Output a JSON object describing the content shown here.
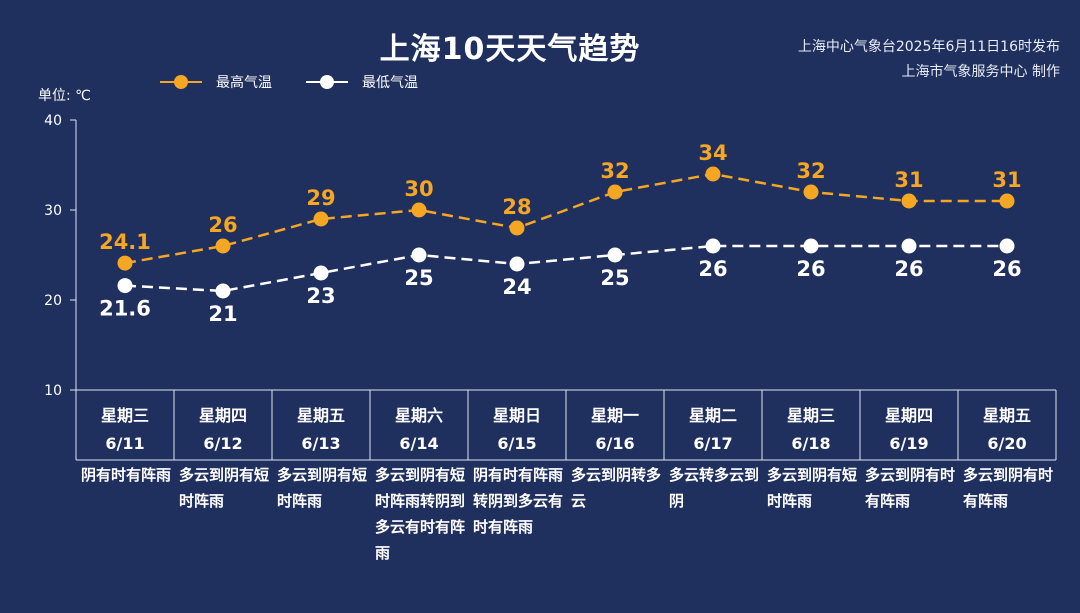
{
  "title": "上海10天天气趋势",
  "credit_line1": "上海中心气象台2025年6月11日16时发布",
  "credit_line2": "上海市气象服务中心 制作",
  "unit_label": "单位: ℃",
  "colors": {
    "background": "#1f2f5e",
    "high": "#f5a623",
    "low": "#ffffff",
    "grid": "#dfe4ef"
  },
  "chart_data": {
    "type": "line",
    "title": "上海10天天气趋势",
    "ylabel": "单位: ℃",
    "ylim": [
      10,
      40
    ],
    "yticks": [
      10,
      20,
      30,
      40
    ],
    "legend_position": "top-left",
    "days": [
      {
        "weekday": "星期三",
        "date": "6/11",
        "high": "24.1",
        "low": "21.6",
        "condition": "阴有时有阵雨"
      },
      {
        "weekday": "星期四",
        "date": "6/12",
        "high": "26",
        "low": "21",
        "condition": "多云到阴有短时阵雨"
      },
      {
        "weekday": "星期五",
        "date": "6/13",
        "high": "29",
        "low": "23",
        "condition": "多云到阴有短时阵雨"
      },
      {
        "weekday": "星期六",
        "date": "6/14",
        "high": "30",
        "low": "25",
        "condition": "多云到阴有短时阵雨转阴到多云有时有阵雨"
      },
      {
        "weekday": "星期日",
        "date": "6/15",
        "high": "28",
        "low": "24",
        "condition": "阴有时有阵雨转阴到多云有时有阵雨"
      },
      {
        "weekday": "星期一",
        "date": "6/16",
        "high": "32",
        "low": "25",
        "condition": "多云到阴转多云"
      },
      {
        "weekday": "星期二",
        "date": "6/17",
        "high": "34",
        "low": "26",
        "condition": "多云转多云到阴"
      },
      {
        "weekday": "星期三",
        "date": "6/18",
        "high": "32",
        "low": "26",
        "condition": "多云到阴有短时阵雨"
      },
      {
        "weekday": "星期四",
        "date": "6/19",
        "high": "31",
        "low": "26",
        "condition": "多云到阴有时有阵雨"
      },
      {
        "weekday": "星期五",
        "date": "6/20",
        "high": "31",
        "low": "26",
        "condition": "多云到阴有时有阵雨"
      }
    ],
    "series": [
      {
        "name": "最高气温",
        "key": "high"
      },
      {
        "name": "最低气温",
        "key": "low"
      }
    ]
  }
}
